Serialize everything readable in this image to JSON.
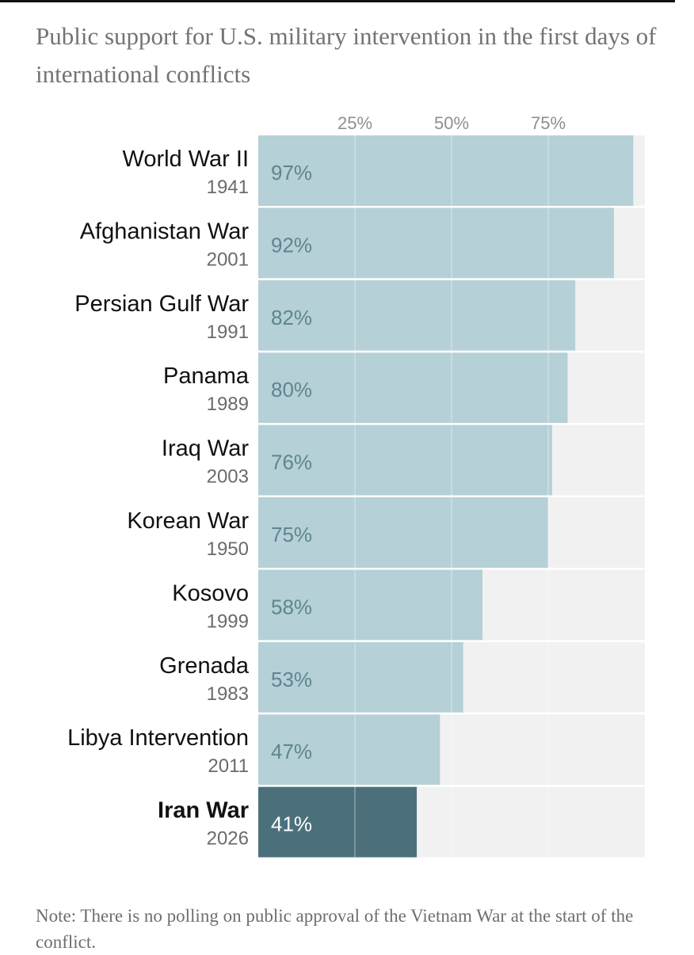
{
  "colors": {
    "bar": "#b5d0d7",
    "bar_highlight": "#4b707c",
    "track": "#f1f1f1",
    "gridline": "#ffffff",
    "value_text": "#5f858f",
    "value_text_highlight": "#ffffff"
  },
  "chart_data": {
    "type": "bar",
    "orientation": "horizontal",
    "title": "Public support for U.S. military intervention in the first days of international conflicts",
    "xlim": [
      0,
      100
    ],
    "xticks": [
      25,
      50,
      75
    ],
    "xtick_labels": [
      "25%",
      "50%",
      "75%"
    ],
    "grid": true,
    "categories": [
      {
        "name": "World War II",
        "year": "1941",
        "value": 97,
        "label": "97%",
        "highlight": false
      },
      {
        "name": "Afghanistan War",
        "year": "2001",
        "value": 92,
        "label": "92%",
        "highlight": false
      },
      {
        "name": "Persian Gulf War",
        "year": "1991",
        "value": 82,
        "label": "82%",
        "highlight": false
      },
      {
        "name": "Panama",
        "year": "1989",
        "value": 80,
        "label": "80%",
        "highlight": false
      },
      {
        "name": "Iraq War",
        "year": "2003",
        "value": 76,
        "label": "76%",
        "highlight": false
      },
      {
        "name": "Korean War",
        "year": "1950",
        "value": 75,
        "label": "75%",
        "highlight": false
      },
      {
        "name": "Kosovo",
        "year": "1999",
        "value": 58,
        "label": "58%",
        "highlight": false
      },
      {
        "name": "Grenada",
        "year": "1983",
        "value": 53,
        "label": "53%",
        "highlight": false
      },
      {
        "name": "Libya Intervention",
        "year": "2011",
        "value": 47,
        "label": "47%",
        "highlight": false
      },
      {
        "name": "Iran War",
        "year": "2026",
        "value": 41,
        "label": "41%",
        "highlight": true
      }
    ],
    "note": "Note: There is no polling on public approval of the Vietnam War at the start of the conflict."
  }
}
